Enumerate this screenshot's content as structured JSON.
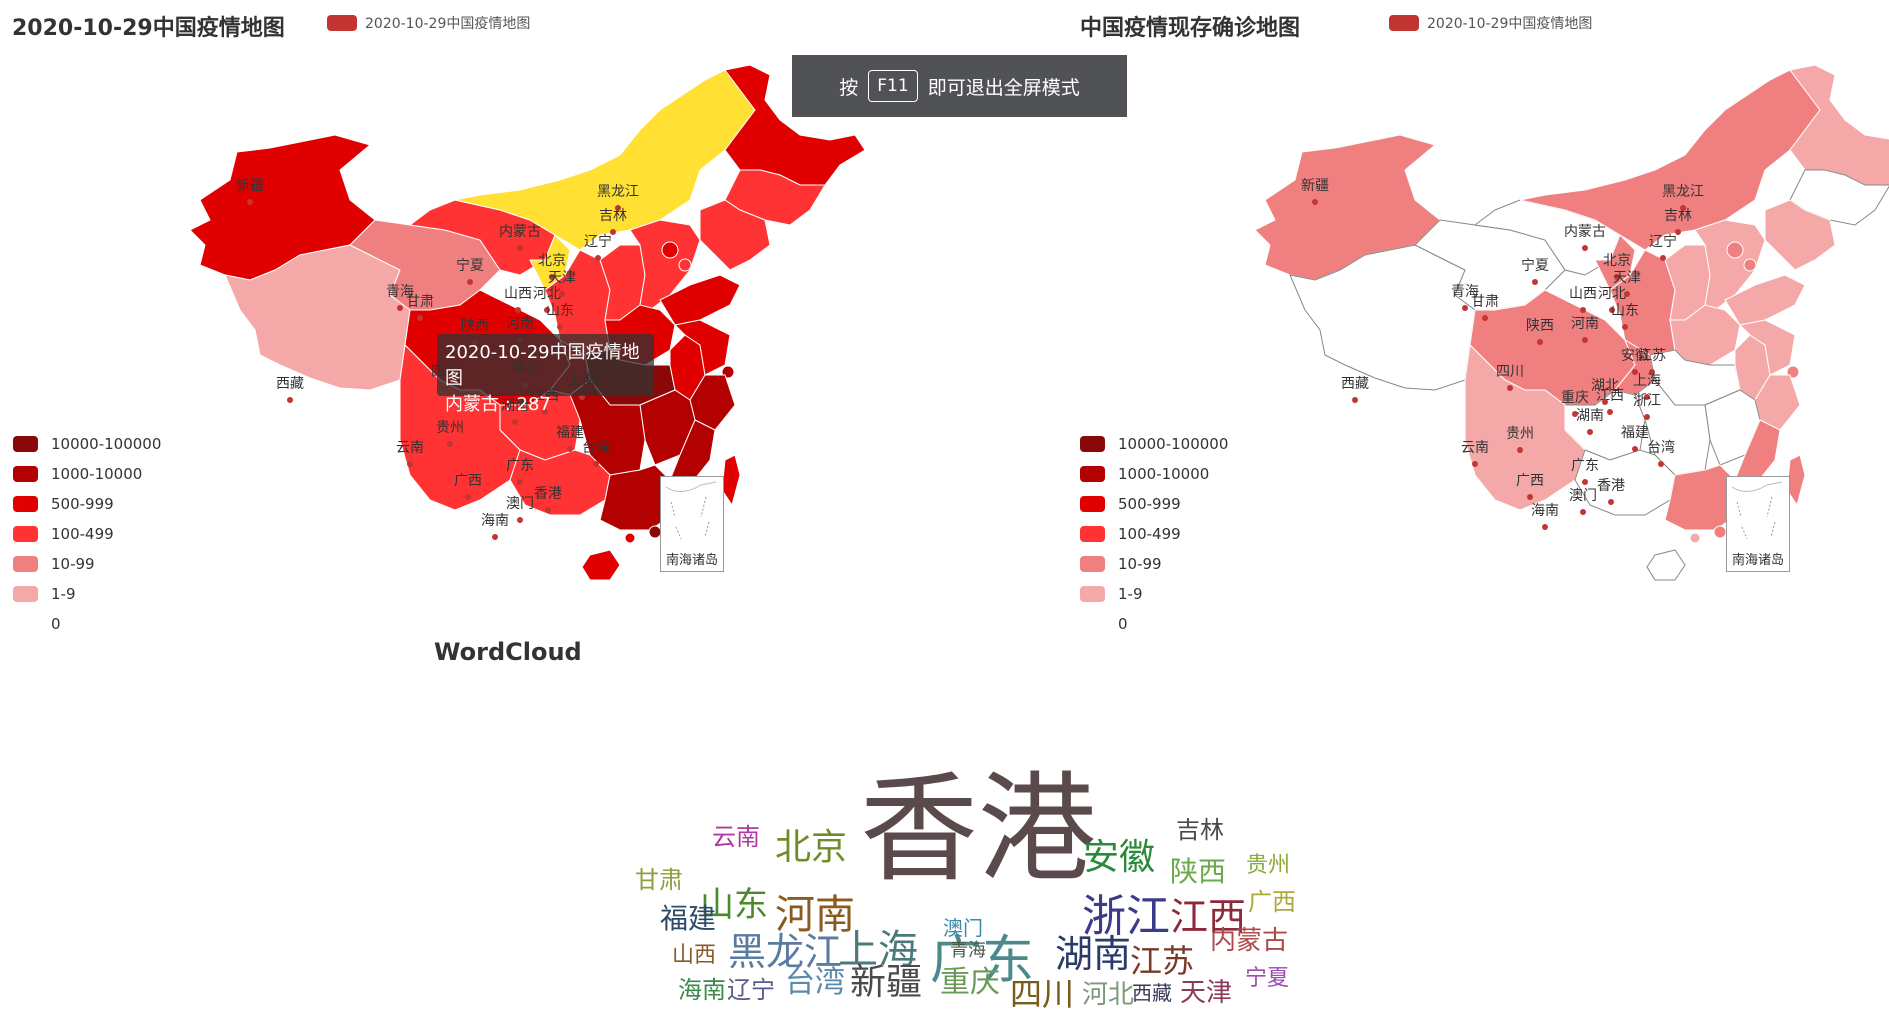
{
  "left_chart": {
    "title": "2020-10-29中国疫情地图",
    "legend_label": "2020-10-29中国疫情地图",
    "south_sea_label": "南海诸岛"
  },
  "right_chart": {
    "title": "中国疫情现存确诊地图",
    "legend_label": "2020-10-29中国疫情地图",
    "south_sea_label": "南海诸岛"
  },
  "visual_map": {
    "pieces": [
      {
        "label": "10000-100000",
        "color": "#8a0808"
      },
      {
        "label": "1000-10000",
        "color": "#b30000"
      },
      {
        "label": "500-999",
        "color": "#e00000"
      },
      {
        "label": "100-499",
        "color": "#ff3333"
      },
      {
        "label": "10-99",
        "color": "#f08080"
      },
      {
        "label": "1-9",
        "color": "#f4a9a8"
      },
      {
        "label": "0",
        "color": "#ffffff"
      }
    ]
  },
  "fullscreen_banner": {
    "prefix": "按",
    "key": "F11",
    "suffix": "即可退出全屏模式"
  },
  "tooltip": {
    "title": "2020-10-29中国疫情地图",
    "value_line": "内蒙古 : 287"
  },
  "left_map_labels": [
    "新疆",
    "西藏",
    "青海",
    "甘肃",
    "内蒙古",
    "宁夏",
    "陕西",
    "四川",
    "云南",
    "贵州",
    "广西",
    "广东",
    "海南",
    "湖南",
    "江西",
    "福建",
    "台湾",
    "香港",
    "澳门",
    "湖北",
    "河南",
    "山西",
    "河北",
    "北京",
    "天津",
    "山东",
    "上海",
    "辽宁",
    "吉林",
    "黑龙江"
  ],
  "right_map_labels": [
    "新疆",
    "西藏",
    "青海",
    "甘肃",
    "内蒙古",
    "宁夏",
    "陕西",
    "四川",
    "重庆",
    "云南",
    "贵州",
    "广西",
    "广东",
    "海南",
    "湖南",
    "江西",
    "福建",
    "台湾",
    "香港",
    "澳门",
    "湖北",
    "河南",
    "山西",
    "河北",
    "北京",
    "天津",
    "山东",
    "安徽",
    "江苏",
    "上海",
    "浙江",
    "辽宁",
    "吉林",
    "黑龙江"
  ],
  "wordcloud": {
    "title": "WordCloud",
    "words": [
      {
        "text": "香港",
        "color": "#5b4a4c"
      },
      {
        "text": "广东",
        "color": "#4b8a8a"
      },
      {
        "text": "北京",
        "color": "#6e8c28"
      },
      {
        "text": "河南",
        "color": "#8a5a1e"
      },
      {
        "text": "安徽",
        "color": "#2a8a3a"
      },
      {
        "text": "浙江",
        "color": "#3b3b8a"
      },
      {
        "text": "江西",
        "color": "#8a2a3a"
      },
      {
        "text": "上海",
        "color": "#4b7a7a"
      },
      {
        "text": "黑龙江",
        "color": "#5a7aa0"
      },
      {
        "text": "湖南",
        "color": "#2a3a6a"
      },
      {
        "text": "山东",
        "color": "#4a8a2a"
      },
      {
        "text": "江苏",
        "color": "#7a3a2a"
      },
      {
        "text": "新疆",
        "color": "#4a4a4a"
      },
      {
        "text": "四川",
        "color": "#7a5a1a"
      },
      {
        "text": "陕西",
        "color": "#6aaa4a"
      },
      {
        "text": "吉林",
        "color": "#4a4a4a"
      },
      {
        "text": "云南",
        "color": "#b03aa0"
      },
      {
        "text": "甘肃",
        "color": "#8aa03a"
      },
      {
        "text": "福建",
        "color": "#2a4a6a"
      },
      {
        "text": "重庆",
        "color": "#6a9a5a"
      },
      {
        "text": "台湾",
        "color": "#5a8aaa"
      },
      {
        "text": "内蒙古",
        "color": "#b04a4a"
      },
      {
        "text": "天津",
        "color": "#8a3a5a"
      },
      {
        "text": "河北",
        "color": "#7a9a7a"
      },
      {
        "text": "贵州",
        "color": "#8aaa3a"
      },
      {
        "text": "广西",
        "color": "#aaaa3a"
      },
      {
        "text": "澳门",
        "color": "#3a8aaa"
      },
      {
        "text": "青海",
        "color": "#4a5a4a"
      },
      {
        "text": "山西",
        "color": "#8a5a2a"
      },
      {
        "text": "海南",
        "color": "#3a8a4a"
      },
      {
        "text": "辽宁",
        "color": "#5a5a8a"
      },
      {
        "text": "西藏",
        "color": "#3a3a5a"
      },
      {
        "text": "宁夏",
        "color": "#9a4ab0"
      }
    ]
  }
}
